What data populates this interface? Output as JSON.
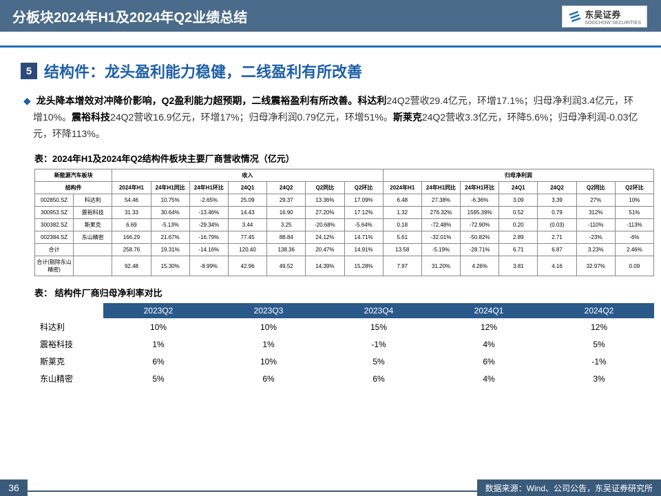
{
  "header": {
    "title": "分板块2024年H1及2024年Q2业绩总结"
  },
  "logo": {
    "cn": "东吴证券",
    "en": "SOOCHOW SECURITIES"
  },
  "section": {
    "num": "5",
    "title": "结构件：龙头盈利能力稳健，二线盈利有所改善",
    "body_lead": "龙头降本增效对冲降价影响，Q2盈利能力超预期，二线震裕盈利有所改善。科达利",
    "body_rest": "24Q2营收29.4亿元，环增17.1%；归母净利润3.4亿元，环增10%。",
    "body_b2": "震裕科技",
    "body_r2": "24Q2营收16.9亿元，环增17%；归母净利润0.79亿元，环增51%。",
    "body_b3": "斯莱克",
    "body_r3": "24Q2营收3.3亿元，环降5.6%；归母净利润-0.03亿元，环降113%。"
  },
  "table1": {
    "caption": "表：2024年H1及2024年Q2结构件板块主要厂商营收情况（亿元）",
    "top1": "新能源汽车板块",
    "top2": "收入",
    "top3": "归母净利润",
    "sub": "结构件",
    "cols": [
      "2024年H1",
      "24年H1同比",
      "24年H1环比",
      "24Q1",
      "24Q2",
      "Q2同比",
      "Q2环比",
      "2024年H1",
      "24年H1同比",
      "24年H1环比",
      "24Q1",
      "24Q2",
      "Q2同比",
      "Q2环比"
    ],
    "rows": [
      [
        "002850.SZ",
        "科达利",
        "54.46",
        "10.75%",
        "-2.65%",
        "25.09",
        "29.37",
        "13.36%",
        "17.09%",
        "6.48",
        "27.38%",
        "-6.36%",
        "3.09",
        "3.39",
        "27%",
        "10%"
      ],
      [
        "300953.SZ",
        "震裕科技",
        "31.33",
        "30.64%",
        "-13.46%",
        "14.43",
        "16.90",
        "27.20%",
        "17.12%",
        "1.32",
        "276.32%",
        "1595.39%",
        "0.52",
        "0.79",
        "312%",
        "51%"
      ],
      [
        "300382.SZ",
        "斯莱克",
        "6.69",
        "-5.13%",
        "-29.34%",
        "3.44",
        "3.25",
        "-20.68%",
        "-5.64%",
        "0.18",
        "-72.48%",
        "-72.90%",
        "0.20",
        "(0.03)",
        "-110%",
        "-113%"
      ],
      [
        "002384.SZ",
        "东山精密",
        "166.29",
        "21.67%",
        "-16.79%",
        "77.45",
        "88.84",
        "24.12%",
        "14.71%",
        "5.61",
        "-32.01%",
        "-50.82%",
        "2.89",
        "2.71",
        "-23%",
        "-6%"
      ]
    ],
    "sum1": [
      "合计",
      "",
      "258.76",
      "19.31%",
      "-14.16%",
      "120.40",
      "138.36",
      "20.47%",
      "14.91%",
      "13.58",
      "-5.19%",
      "-28.71%",
      "6.71",
      "6.87",
      "3.23%",
      "2.46%"
    ],
    "sum2": [
      "合计(剔除东山精密)",
      "",
      "92.48",
      "15.30%",
      "-8.99%",
      "42.96",
      "49.52",
      "14.39%",
      "15.28%",
      "7.97",
      "31.20%",
      "4.26%",
      "3.81",
      "4.16",
      "32.97%",
      "0.09"
    ]
  },
  "table2": {
    "caption": "表： 结构件厂商归母净利率对比",
    "cols": [
      "",
      "2023Q2",
      "2023Q3",
      "2023Q4",
      "2024Q1",
      "2024Q2"
    ],
    "rows": [
      [
        "科达利",
        "10%",
        "10%",
        "15%",
        "12%",
        "12%"
      ],
      [
        "震裕科技",
        "1%",
        "1%",
        "-1%",
        "4%",
        "5%"
      ],
      [
        "斯莱克",
        "6%",
        "10%",
        "5%",
        "6%",
        "-1%"
      ],
      [
        "东山精密",
        "5%",
        "6%",
        "6%",
        "4%",
        "3%"
      ]
    ]
  },
  "footer": {
    "page": "36",
    "source": "数据来源：Wind、公司公告，东吴证券研究所"
  }
}
